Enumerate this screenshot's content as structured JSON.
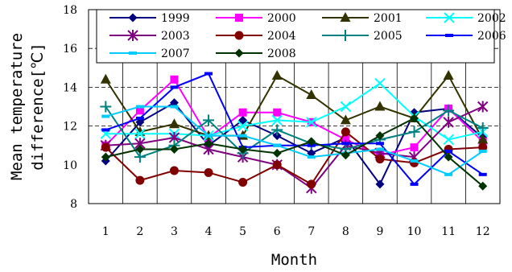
{
  "chart_data": {
    "type": "line",
    "xlabel": "Month",
    "ylabel_lines": [
      "Mean temperature",
      "difference[℃]"
    ],
    "x": [
      1,
      2,
      3,
      4,
      5,
      6,
      7,
      8,
      9,
      10,
      11,
      12
    ],
    "xlim": [
      0.5,
      12.5
    ],
    "ylim": [
      8,
      18
    ],
    "yticks": [
      8,
      10,
      12,
      14,
      16,
      18
    ],
    "grid": "horizontal dashed lines at 12, 14 and 16; vertical lines between months",
    "legend_position": "top, inside plot area, 4 columns",
    "series": [
      {
        "name": "1999",
        "color": "#000080",
        "marker": "diamond",
        "values": [
          10.2,
          12.2,
          13.2,
          11.0,
          12.3,
          11.5,
          10.6,
          11.4,
          9.0,
          12.7,
          12.9,
          11.4
        ]
      },
      {
        "name": "2000",
        "color": "#FF00FF",
        "marker": "square",
        "values": [
          11.0,
          12.8,
          14.4,
          11.4,
          12.7,
          12.7,
          12.2,
          11.3,
          10.5,
          10.9,
          12.9,
          11.2
        ]
      },
      {
        "name": "2001",
        "color": "#333300",
        "marker": "triangle",
        "values": [
          14.4,
          11.7,
          12.1,
          11.5,
          11.5,
          14.6,
          13.6,
          12.3,
          13.0,
          12.4,
          14.6,
          11.3
        ]
      },
      {
        "name": "2002",
        "color": "#00FFFF",
        "marker": "x",
        "values": [
          11.6,
          11.6,
          11.6,
          11.5,
          12.0,
          12.3,
          12.2,
          13.0,
          14.2,
          12.5,
          11.3,
          11.7
        ]
      },
      {
        "name": "2003",
        "color": "#800080",
        "marker": "star",
        "values": [
          11.0,
          11.1,
          11.4,
          10.8,
          10.4,
          10.0,
          8.8,
          11.0,
          10.6,
          10.4,
          12.2,
          13.0
        ]
      },
      {
        "name": "2004",
        "color": "#800000",
        "marker": "circle",
        "values": [
          10.9,
          9.2,
          9.7,
          9.6,
          9.1,
          10.0,
          9.0,
          11.7,
          10.3,
          10.1,
          10.8,
          10.9
        ]
      },
      {
        "name": "2005",
        "color": "#008080",
        "marker": "plus",
        "values": [
          13.0,
          10.4,
          11.0,
          12.3,
          10.6,
          11.8,
          11.1,
          10.8,
          11.3,
          11.7,
          12.8,
          11.9
        ]
      },
      {
        "name": "2006",
        "color": "#0000FF",
        "marker": "dash",
        "values": [
          11.8,
          12.4,
          14.0,
          14.7,
          10.9,
          11.0,
          11.0,
          11.1,
          11.1,
          9.0,
          10.7,
          9.5
        ]
      },
      {
        "name": "2007",
        "color": "#00CCFF",
        "marker": "dash",
        "values": [
          12.5,
          13.0,
          13.0,
          11.5,
          11.5,
          11.0,
          10.4,
          10.6,
          10.8,
          10.2,
          9.5,
          10.7
        ]
      },
      {
        "name": "2008",
        "color": "#003300",
        "marker": "diamond",
        "values": [
          10.4,
          10.8,
          10.8,
          11.1,
          10.8,
          10.6,
          11.2,
          10.5,
          11.5,
          12.4,
          10.4,
          8.9
        ]
      }
    ]
  }
}
